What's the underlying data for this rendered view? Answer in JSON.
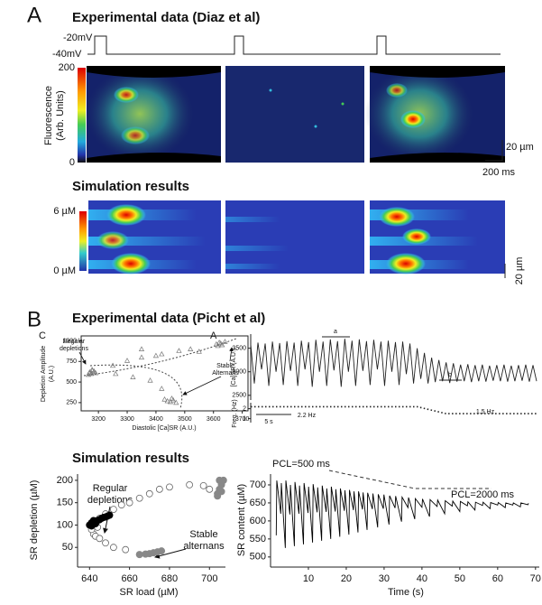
{
  "panels": {
    "A": {
      "label": "A",
      "experimental": {
        "title": "Experimental data (Diaz et al)",
        "voltage_labels": [
          "-20mV",
          "-40mV"
        ],
        "colorbar": {
          "label": [
            "Fluorescence",
            "(Arb. Units)"
          ],
          "range": [
            0,
            200
          ],
          "ticks": [
            200,
            0
          ]
        },
        "scale_y": "20 µm",
        "scale_x": "200 ms"
      },
      "simulation": {
        "title": "Simulation results",
        "colorbar": {
          "range": [
            0,
            6
          ],
          "ticks": [
            {
              "value": 6,
              "label": "6 µM"
            },
            {
              "value": 0,
              "label": "0 µM"
            }
          ]
        },
        "scale_y": "20 µm"
      }
    },
    "B": {
      "label": "B",
      "experimental_title": "Experimental data (Picht et al)",
      "simulation_title": "Simulation results"
    }
  },
  "chart_data": [
    {
      "type": "scatter",
      "panel_label": "C",
      "x_label": "Diastolic [Ca]SR (A.U.)",
      "y_label": [
        "Depletion Amplitude",
        "(A.U.)"
      ],
      "xlim": [
        3140,
        3720
      ],
      "ylim": [
        150,
        1060
      ],
      "xticks": [
        3200,
        3300,
        3400,
        3500,
        3600,
        3700
      ],
      "yticks": [
        250,
        500,
        750,
        1000
      ],
      "annotations": [
        [
          "Regular",
          "depletions"
        ],
        [
          "Stable",
          "Alternans"
        ]
      ],
      "series": [
        {
          "marker": "open-triangle",
          "color": "#777",
          "x": [
            3170,
            3175,
            3180,
            3168,
            3185,
            3190,
            3178,
            3165,
            3610,
            3620,
            3630,
            3615,
            3625,
            3640,
            3440,
            3450,
            3460,
            3470,
            3455,
            3430,
            3250,
            3300,
            3350,
            3400,
            3420,
            3480,
            3520,
            3550,
            3260,
            3320,
            3380,
            3420,
            3350
          ],
          "values": [
            620,
            600,
            640,
            610,
            630,
            610,
            650,
            590,
            960,
            980,
            950,
            940,
            970,
            990,
            270,
            260,
            280,
            250,
            300,
            290,
            700,
            760,
            800,
            820,
            840,
            880,
            900,
            870,
            600,
            560,
            520,
            420,
            900
          ]
        }
      ]
    },
    {
      "type": "line",
      "panel_label": "A",
      "y_label": "[Ca]SR (A.U.)",
      "ylim": [
        2400,
        3800
      ],
      "yticks": [
        2500,
        3000,
        3500
      ],
      "annotations": [
        "a",
        "b",
        "5 s",
        "2.2 Hz",
        "1.5 Hz"
      ],
      "series": [
        {
          "color": "#222",
          "values": [
            3580,
            2750,
            3620,
            3050,
            3600,
            2700,
            3640,
            3000,
            3610,
            2720,
            3650,
            3020,
            3620,
            2700,
            3660,
            3050,
            3630,
            2680,
            3680,
            3000,
            3640,
            2700,
            3690,
            3030,
            3650,
            2680,
            3700,
            3000,
            3660,
            2700,
            3690,
            3020,
            3650,
            2720,
            3680,
            3050,
            3640,
            2700,
            3660,
            3000,
            3630,
            2720,
            3640,
            2950,
            3600,
            2750,
            3500,
            2850,
            3400,
            2750,
            3300,
            2780,
            3250,
            2800,
            3200,
            2760,
            3180,
            2790,
            3150,
            2800,
            3160,
            2780,
            3140,
            2800,
            3150,
            2790,
            3130,
            2810,
            3140,
            2800,
            3150,
            2790,
            3130,
            2800,
            3140,
            2810,
            3150,
            2790,
            3140,
            2800
          ]
        }
      ]
    },
    {
      "type": "line",
      "y_label": "Freq. (Hz)",
      "ylim": [
        0.6,
        2.6
      ],
      "yticks": [
        1,
        2
      ],
      "series": [
        {
          "color": "#222",
          "dash": "dotted",
          "x": [
            0,
            46,
            54,
            79
          ],
          "values": [
            2.2,
            2.2,
            1.5,
            1.5
          ]
        }
      ]
    },
    {
      "type": "scatter",
      "x_label": "SR load (µM)",
      "y_label": "SR depletion (µM)",
      "xlim": [
        634,
        708
      ],
      "ylim": [
        6,
        214
      ],
      "xticks": [
        640,
        660,
        680,
        700
      ],
      "yticks": [
        50,
        100,
        150,
        200
      ],
      "annotations": [
        [
          "Regular",
          "depletions"
        ],
        [
          "Stable",
          "alternans"
        ]
      ],
      "series": [
        {
          "marker": "open-circle",
          "color": "#666",
          "x": [
            642,
            643,
            645,
            648,
            652,
            658,
            645,
            648,
            652,
            656,
            660,
            665,
            670,
            675,
            680,
            690,
            697,
            700,
            644,
            641
          ],
          "values": [
            80,
            75,
            70,
            60,
            50,
            45,
            115,
            125,
            135,
            145,
            150,
            160,
            170,
            180,
            185,
            190,
            188,
            180,
            95,
            90
          ]
        },
        {
          "marker": "filled-circle",
          "color": "#000",
          "x": [
            640,
            641,
            642,
            643,
            644,
            645,
            646,
            647,
            648,
            649,
            650,
            641,
            642,
            643
          ],
          "values": [
            100,
            105,
            102,
            108,
            110,
            112,
            115,
            117,
            118,
            120,
            122,
            98,
            110,
            103
          ]
        },
        {
          "marker": "filled-circle",
          "color": "#888",
          "x": [
            668,
            670,
            672,
            674,
            676,
            665,
            704,
            705,
            706,
            705,
            704,
            706,
            707
          ],
          "values": [
            35,
            36,
            38,
            40,
            42,
            34,
            170,
            180,
            190,
            200,
            165,
            175,
            200
          ]
        }
      ]
    },
    {
      "type": "line",
      "x_label": "Time (s)",
      "y_label": "SR content (µM)",
      "xlim": [
        0,
        71
      ],
      "ylim": [
        472,
        730
      ],
      "xticks": [
        10,
        20,
        30,
        40,
        50,
        60,
        70
      ],
      "yticks": [
        500,
        550,
        600,
        650,
        700
      ],
      "annotations": [
        "PCL=500 ms",
        "PCL=2000 ms"
      ],
      "series": [
        {
          "color": "#000",
          "x": [
            1.5,
            1.65,
            2.7,
            2.85,
            3.9,
            4.05,
            5.1,
            5.25,
            6.3,
            6.45,
            7.5,
            7.65,
            8.7,
            8.85,
            9.9,
            10.05,
            11.1,
            11.25,
            12.3,
            12.45,
            13.5,
            13.65,
            14.7,
            14.85,
            15.9,
            16.05,
            17.1,
            17.25,
            18.3,
            18.45,
            19.5,
            19.65,
            20.7,
            20.85,
            21.9,
            22.05,
            23.1,
            23.25,
            24.3,
            24.45,
            25.5,
            25.65,
            26.9,
            27.05,
            28.3,
            28.45,
            29.8,
            29.95,
            31.3,
            31.45,
            32.9,
            33.05,
            34.6,
            34.75,
            36.3,
            36.45,
            38.1,
            38.25,
            40,
            40.15,
            42,
            42.15,
            44,
            44.15,
            46,
            46.15,
            48,
            48.15,
            50,
            50.15,
            52,
            52.15,
            54,
            54.15,
            56,
            56.15,
            58,
            58.15,
            60,
            60.15,
            62,
            62.15,
            64,
            64.15,
            66,
            66.15,
            68,
            68.15
          ],
          "values": [
            560,
            712,
            620,
            705,
            525,
            712,
            618,
            700,
            530,
            708,
            620,
            698,
            535,
            705,
            622,
            695,
            540,
            702,
            624,
            693,
            545,
            698,
            625,
            690,
            550,
            695,
            626,
            688,
            556,
            690,
            628,
            685,
            562,
            686,
            630,
            682,
            568,
            682,
            632,
            679,
            575,
            678,
            633,
            676,
            582,
            674,
            634,
            673,
            590,
            670,
            636,
            669,
            598,
            666,
            637,
            665,
            605,
            662,
            638,
            661,
            612,
            659,
            640,
            658,
            620,
            656,
            641,
            655,
            626,
            654,
            642,
            653,
            630,
            652,
            643,
            652,
            634,
            651,
            644,
            651,
            637,
            650,
            644,
            650,
            639,
            650,
            645,
            649
          ]
        }
      ]
    }
  ]
}
